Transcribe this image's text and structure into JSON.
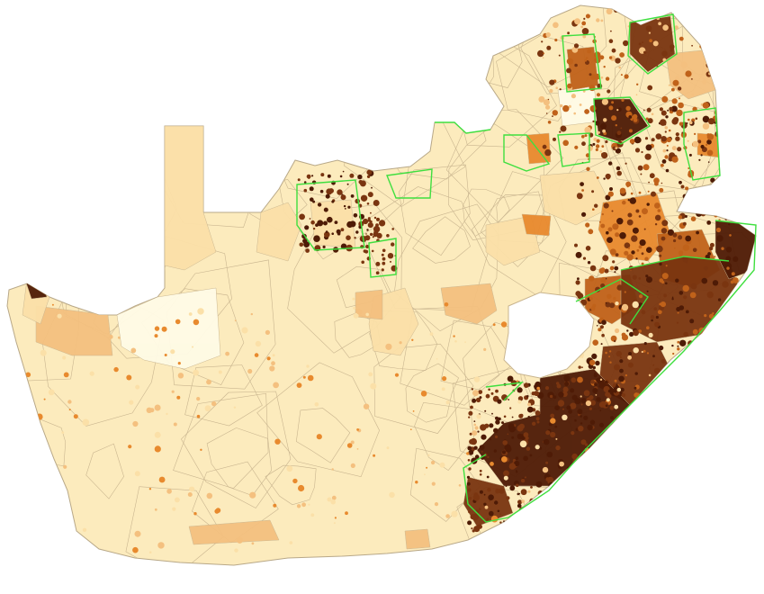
{
  "map": {
    "colors": {
      "background": "#ffffff",
      "base": "#FCEBBD",
      "light": "#FBE0A8",
      "medium": "#F4C07F",
      "orange": "#E88A2E",
      "dark_orange": "#C0621A",
      "brown": "#7A3510",
      "dark_brown": "#4E1B06",
      "very_light": "#FFFBE6",
      "border": "#C9B58F",
      "highlight": "#3FDF3F"
    }
  }
}
